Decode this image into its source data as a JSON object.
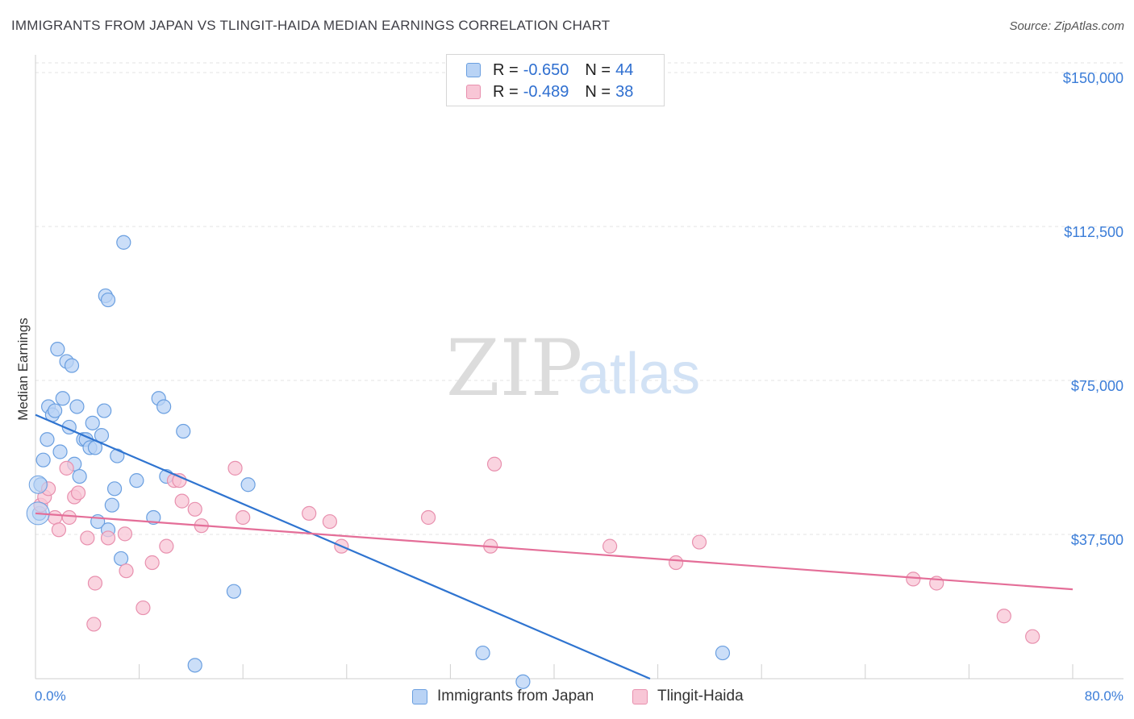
{
  "title": "IMMIGRANTS FROM JAPAN VS TLINGIT-HAIDA MEDIAN EARNINGS CORRELATION CHART",
  "source": "Source: ZipAtlas.com",
  "watermark": {
    "zip": "ZIP",
    "atlas": "atlas"
  },
  "legend": {
    "series": [
      {
        "name": "Immigrants from Japan",
        "r_label": "R =",
        "r_value": "-0.650",
        "n_label": "N =",
        "n_value": "44",
        "fill": "#b9d3f5",
        "stroke": "#6a9fe0"
      },
      {
        "name": "Tlingit-Haida",
        "r_label": "R =",
        "r_value": "-0.489",
        "n_label": "N =",
        "n_value": "38",
        "fill": "#f8c6d6",
        "stroke": "#e890ae"
      }
    ]
  },
  "chart_data": {
    "type": "scatter",
    "ylabel": "Median Earnings",
    "xlim": [
      0,
      80
    ],
    "ylim": [
      0,
      155000
    ],
    "x_tick_labels": {
      "min": "0.0%",
      "max": "80.0%"
    },
    "y_ticks": [
      {
        "value": 150000,
        "label": "$150,000"
      },
      {
        "value": 112500,
        "label": "$112,500"
      },
      {
        "value": 75000,
        "label": "$75,000"
      },
      {
        "value": 37500,
        "label": "$37,500"
      }
    ],
    "series": [
      {
        "name": "Immigrants from Japan",
        "color": "#2f74d0",
        "fill": "#b9d3f5",
        "stroke": "#6a9fe0",
        "trend": {
          "x": [
            0,
            47.4
          ],
          "y": [
            68000,
            0
          ]
        },
        "points": [
          [
            0.3,
            44000
          ],
          [
            0.4,
            51000
          ],
          [
            0.6,
            57000
          ],
          [
            0.9,
            62000
          ],
          [
            1.0,
            70000
          ],
          [
            1.3,
            68000
          ],
          [
            1.5,
            69000
          ],
          [
            1.7,
            84000
          ],
          [
            1.9,
            59000
          ],
          [
            2.1,
            72000
          ],
          [
            2.4,
            81000
          ],
          [
            2.6,
            65000
          ],
          [
            2.8,
            80000
          ],
          [
            3.0,
            56000
          ],
          [
            3.2,
            70000
          ],
          [
            3.4,
            53000
          ],
          [
            3.7,
            62000
          ],
          [
            3.9,
            62000
          ],
          [
            4.2,
            60000
          ],
          [
            4.4,
            66000
          ],
          [
            4.6,
            60000
          ],
          [
            4.8,
            42000
          ],
          [
            5.1,
            63000
          ],
          [
            5.3,
            69000
          ],
          [
            5.6,
            40000
          ],
          [
            5.9,
            46000
          ],
          [
            6.1,
            50000
          ],
          [
            6.3,
            58000
          ],
          [
            6.6,
            33000
          ],
          [
            5.4,
            97000
          ],
          [
            6.8,
            110000
          ],
          [
            5.6,
            96000
          ],
          [
            7.8,
            52000
          ],
          [
            9.1,
            43000
          ],
          [
            9.5,
            72000
          ],
          [
            9.9,
            70000
          ],
          [
            10.1,
            53000
          ],
          [
            11.4,
            64000
          ],
          [
            12.3,
            7000
          ],
          [
            15.3,
            25000
          ],
          [
            16.4,
            51000
          ],
          [
            34.5,
            10000
          ],
          [
            37.6,
            3000
          ],
          [
            53.0,
            10000
          ]
        ]
      },
      {
        "name": "Tlingit-Haida",
        "color": "#e46e98",
        "fill": "#f8c6d6",
        "stroke": "#e890ae",
        "trend": {
          "x": [
            0,
            80
          ],
          "y": [
            44000,
            25500
          ]
        },
        "points": [
          [
            0.4,
            46000
          ],
          [
            0.7,
            48000
          ],
          [
            1.0,
            50000
          ],
          [
            1.5,
            43000
          ],
          [
            1.8,
            40000
          ],
          [
            2.4,
            55000
          ],
          [
            2.6,
            43000
          ],
          [
            3.0,
            48000
          ],
          [
            3.3,
            49000
          ],
          [
            4.0,
            38000
          ],
          [
            4.6,
            27000
          ],
          [
            4.5,
            17000
          ],
          [
            5.6,
            38000
          ],
          [
            6.9,
            39000
          ],
          [
            7.0,
            30000
          ],
          [
            8.3,
            21000
          ],
          [
            9.0,
            32000
          ],
          [
            10.1,
            36000
          ],
          [
            10.7,
            52000
          ],
          [
            11.1,
            52000
          ],
          [
            11.3,
            47000
          ],
          [
            12.3,
            45000
          ],
          [
            12.8,
            41000
          ],
          [
            15.4,
            55000
          ],
          [
            16.0,
            43000
          ],
          [
            21.1,
            44000
          ],
          [
            22.7,
            42000
          ],
          [
            23.6,
            36000
          ],
          [
            30.3,
            43000
          ],
          [
            35.4,
            56000
          ],
          [
            35.1,
            36000
          ],
          [
            44.3,
            36000
          ],
          [
            49.4,
            32000
          ],
          [
            51.2,
            37000
          ],
          [
            67.7,
            28000
          ],
          [
            69.5,
            27000
          ],
          [
            74.7,
            19000
          ],
          [
            76.9,
            14000
          ]
        ]
      }
    ]
  }
}
